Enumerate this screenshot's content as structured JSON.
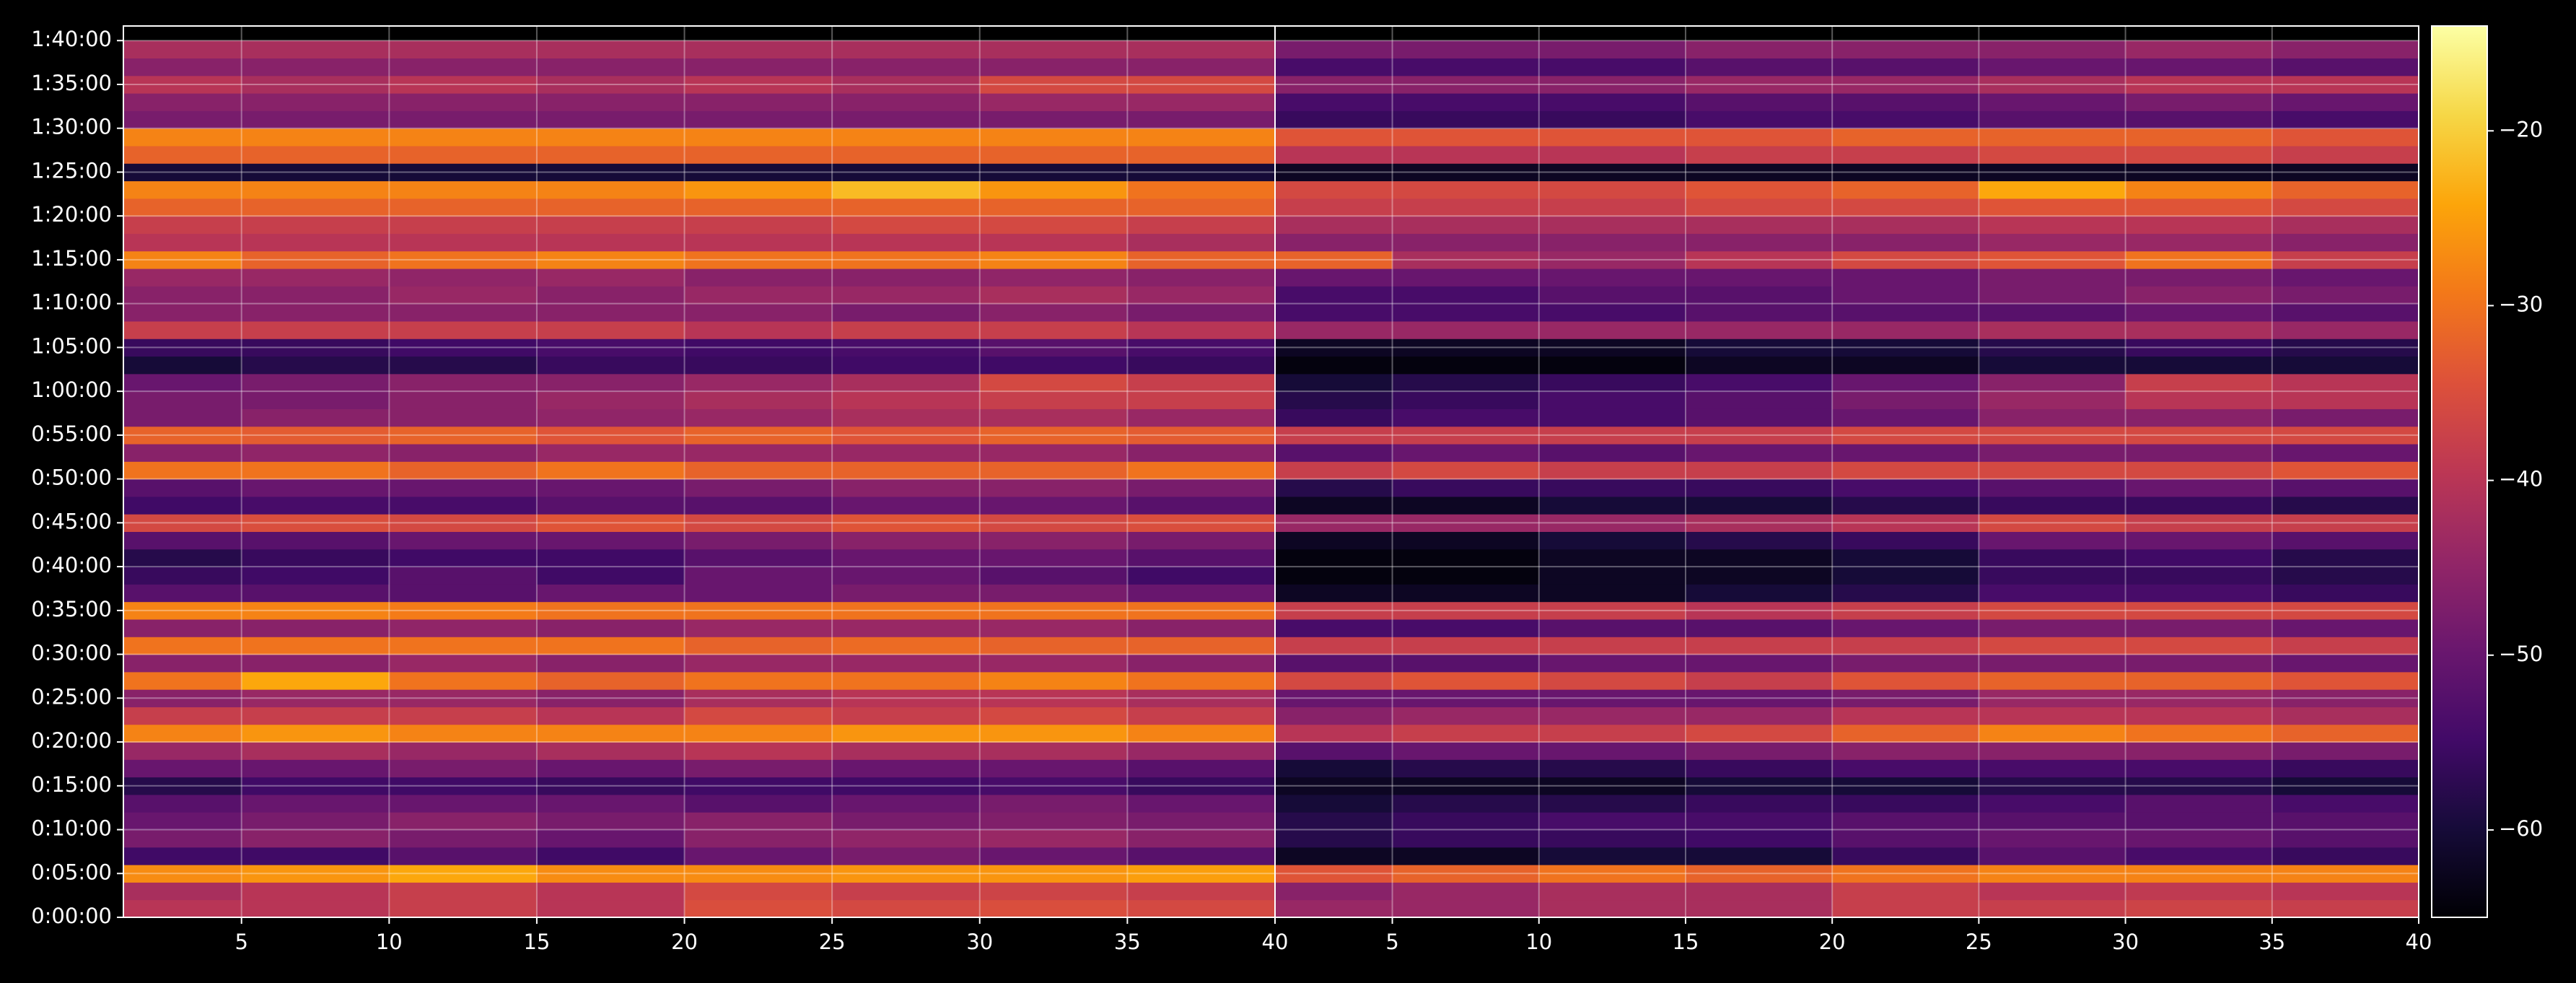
{
  "chart_data": {
    "type": "heatmap",
    "colormap": "inferno",
    "grid": true,
    "xlim": [
      1,
      40
    ],
    "ylim": [
      0,
      6100
    ],
    "clim": [
      -65,
      -14
    ],
    "xbins": [
      1,
      5,
      10,
      15,
      20,
      25,
      30,
      35,
      40
    ],
    "ybins": [
      0,
      120,
      240,
      360,
      480,
      600,
      720,
      840,
      960,
      1080,
      1200,
      1320,
      1440,
      1560,
      1680,
      1800,
      1920,
      2040,
      2160,
      2280,
      2400,
      2520,
      2640,
      2760,
      2880,
      3000,
      3120,
      3240,
      3360,
      3480,
      3600,
      3720,
      3840,
      3960,
      4080,
      4200,
      4320,
      4440,
      4560,
      4680,
      4800,
      4920,
      5040,
      5160,
      5280,
      5400,
      5520,
      5640,
      5760,
      5880,
      6000
    ],
    "yticks": [
      {
        "value": 0,
        "label": "0:00:00"
      },
      {
        "value": 300,
        "label": "0:05:00"
      },
      {
        "value": 600,
        "label": "0:10:00"
      },
      {
        "value": 900,
        "label": "0:15:00"
      },
      {
        "value": 1200,
        "label": "0:20:00"
      },
      {
        "value": 1500,
        "label": "0:25:00"
      },
      {
        "value": 1800,
        "label": "0:30:00"
      },
      {
        "value": 2100,
        "label": "0:35:00"
      },
      {
        "value": 2400,
        "label": "0:40:00"
      },
      {
        "value": 2700,
        "label": "0:45:00"
      },
      {
        "value": 3000,
        "label": "0:50:00"
      },
      {
        "value": 3300,
        "label": "0:55:00"
      },
      {
        "value": 3600,
        "label": "1:00:00"
      },
      {
        "value": 3900,
        "label": "1:05:00"
      },
      {
        "value": 4200,
        "label": "1:10:00"
      },
      {
        "value": 4500,
        "label": "1:15:00"
      },
      {
        "value": 4800,
        "label": "1:20:00"
      },
      {
        "value": 5100,
        "label": "1:25:00"
      },
      {
        "value": 5400,
        "label": "1:30:00"
      },
      {
        "value": 5700,
        "label": "1:35:00"
      },
      {
        "value": 6000,
        "label": "1:40:00"
      }
    ],
    "cticks": [
      {
        "value": -60,
        "label": "−60"
      },
      {
        "value": -50,
        "label": "−50"
      },
      {
        "value": -40,
        "label": "−40"
      },
      {
        "value": -30,
        "label": "−30"
      },
      {
        "value": -20,
        "label": "−20"
      }
    ],
    "panels": [
      {
        "xticks": [
          5,
          10,
          15,
          20,
          25,
          30,
          35,
          40
        ],
        "values": [
          [
            -40,
            -40,
            -38,
            -40,
            -35,
            -36,
            -35,
            -36
          ],
          [
            -42,
            -40,
            -38,
            -40,
            -36,
            -38,
            -37,
            -38
          ],
          [
            -27,
            -26,
            -24,
            -27,
            -27,
            -26,
            -26,
            -25
          ],
          [
            -55,
            -55,
            -52,
            -55,
            -50,
            -48,
            -50,
            -52
          ],
          [
            -48,
            -46,
            -48,
            -50,
            -46,
            -45,
            -44,
            -46
          ],
          [
            -50,
            -48,
            -46,
            -48,
            -46,
            -48,
            -47,
            -48
          ],
          [
            -52,
            -50,
            -50,
            -50,
            -52,
            -50,
            -48,
            -50
          ],
          [
            -58,
            -55,
            -55,
            -56,
            -55,
            -55,
            -54,
            -56
          ],
          [
            -50,
            -50,
            -48,
            -50,
            -48,
            -50,
            -50,
            -52
          ],
          [
            -44,
            -42,
            -44,
            -42,
            -40,
            -42,
            -42,
            -44
          ],
          [
            -28,
            -26,
            -28,
            -28,
            -28,
            -26,
            -26,
            -28
          ],
          [
            -38,
            -38,
            -38,
            -40,
            -36,
            -38,
            -36,
            -38
          ],
          [
            -46,
            -44,
            -44,
            -46,
            -42,
            -40,
            -40,
            -42
          ],
          [
            -30,
            -24,
            -30,
            -32,
            -30,
            -30,
            -28,
            -30
          ],
          [
            -46,
            -46,
            -44,
            -46,
            -44,
            -44,
            -44,
            -46
          ],
          [
            -30,
            -30,
            -30,
            -30,
            -32,
            -31,
            -32,
            -32
          ],
          [
            -46,
            -46,
            -45,
            -46,
            -44,
            -44,
            -44,
            -46
          ],
          [
            -28,
            -28,
            -29,
            -30,
            -30,
            -30,
            -30,
            -30
          ],
          [
            -52,
            -52,
            -52,
            -50,
            -50,
            -48,
            -48,
            -50
          ],
          [
            -56,
            -55,
            -52,
            -55,
            -50,
            -50,
            -52,
            -55
          ],
          [
            -58,
            -56,
            -55,
            -55,
            -52,
            -50,
            -50,
            -52
          ],
          [
            -52,
            -52,
            -50,
            -50,
            -48,
            -46,
            -46,
            -48
          ],
          [
            -36,
            -35,
            -36,
            -34,
            -36,
            -34,
            -36,
            -35
          ],
          [
            -55,
            -54,
            -54,
            -52,
            -52,
            -50,
            -50,
            -52
          ],
          [
            -52,
            -50,
            -50,
            -50,
            -48,
            -46,
            -46,
            -48
          ],
          [
            -30,
            -30,
            -32,
            -30,
            -32,
            -32,
            -32,
            -30
          ],
          [
            -46,
            -45,
            -46,
            -44,
            -44,
            -44,
            -44,
            -46
          ],
          [
            -32,
            -33,
            -32,
            -34,
            -32,
            -34,
            -32,
            -33
          ],
          [
            -48,
            -46,
            -46,
            -45,
            -44,
            -42,
            -42,
            -44
          ],
          [
            -48,
            -48,
            -46,
            -44,
            -42,
            -40,
            -38,
            -38
          ],
          [
            -50,
            -48,
            -46,
            -46,
            -44,
            -42,
            -36,
            -38
          ],
          [
            -60,
            -58,
            -58,
            -56,
            -56,
            -55,
            -55,
            -56
          ],
          [
            -56,
            -56,
            -55,
            -54,
            -55,
            -54,
            -52,
            -54
          ],
          [
            -38,
            -38,
            -38,
            -38,
            -40,
            -38,
            -38,
            -40
          ],
          [
            -46,
            -46,
            -46,
            -46,
            -46,
            -48,
            -46,
            -48
          ],
          [
            -46,
            -46,
            -44,
            -46,
            -44,
            -44,
            -42,
            -44
          ],
          [
            -44,
            -44,
            -45,
            -44,
            -46,
            -46,
            -45,
            -46
          ],
          [
            -28,
            -32,
            -30,
            -28,
            -30,
            -30,
            -28,
            -32
          ],
          [
            -40,
            -40,
            -40,
            -40,
            -40,
            -40,
            -40,
            -42
          ],
          [
            -38,
            -38,
            -38,
            -38,
            -38,
            -36,
            -36,
            -38
          ],
          [
            -32,
            -32,
            -32,
            -32,
            -32,
            -32,
            -32,
            -32
          ],
          [
            -28,
            -28,
            -28,
            -28,
            -26,
            -22,
            -26,
            -30
          ],
          [
            -60,
            -60,
            -60,
            -60,
            -60,
            -60,
            -60,
            -60
          ],
          [
            -32,
            -32,
            -32,
            -32,
            -32,
            -32,
            -32,
            -32
          ],
          [
            -28,
            -28,
            -28,
            -28,
            -28,
            -28,
            -28,
            -28
          ],
          [
            -48,
            -48,
            -48,
            -48,
            -48,
            -48,
            -48,
            -48
          ],
          [
            -46,
            -46,
            -46,
            -46,
            -46,
            -46,
            -44,
            -44
          ],
          [
            -40,
            -42,
            -40,
            -42,
            -40,
            -42,
            -36,
            -36
          ],
          [
            -46,
            -46,
            -46,
            -46,
            -46,
            -46,
            -46,
            -46
          ],
          [
            -42,
            -42,
            -42,
            -42,
            -42,
            -42,
            -42,
            -42
          ]
        ]
      },
      {
        "xticks": [
          5,
          10,
          15,
          20,
          25,
          30,
          35,
          40
        ],
        "values": [
          [
            -44,
            -44,
            -42,
            -42,
            -38,
            -38,
            -37,
            -38
          ],
          [
            -46,
            -44,
            -42,
            -42,
            -38,
            -40,
            -39,
            -40
          ],
          [
            -34,
            -32,
            -30,
            -32,
            -30,
            -28,
            -28,
            -28
          ],
          [
            -62,
            -62,
            -60,
            -60,
            -56,
            -52,
            -54,
            -56
          ],
          [
            -58,
            -56,
            -56,
            -55,
            -52,
            -50,
            -50,
            -52
          ],
          [
            -58,
            -56,
            -54,
            -54,
            -52,
            -52,
            -52,
            -52
          ],
          [
            -60,
            -58,
            -58,
            -56,
            -56,
            -54,
            -52,
            -54
          ],
          [
            -62,
            -62,
            -62,
            -60,
            -60,
            -58,
            -58,
            -60
          ],
          [
            -60,
            -58,
            -58,
            -56,
            -54,
            -54,
            -54,
            -56
          ],
          [
            -52,
            -50,
            -50,
            -48,
            -46,
            -46,
            -46,
            -48
          ],
          [
            -40,
            -38,
            -38,
            -36,
            -32,
            -28,
            -30,
            -32
          ],
          [
            -46,
            -44,
            -44,
            -44,
            -40,
            -40,
            -40,
            -42
          ],
          [
            -50,
            -50,
            -50,
            -50,
            -48,
            -44,
            -44,
            -46
          ],
          [
            -36,
            -34,
            -36,
            -38,
            -34,
            -32,
            -32,
            -34
          ],
          [
            -52,
            -52,
            -50,
            -50,
            -48,
            -48,
            -48,
            -50
          ],
          [
            -38,
            -38,
            -38,
            -38,
            -38,
            -36,
            -36,
            -38
          ],
          [
            -54,
            -54,
            -52,
            -52,
            -50,
            -48,
            -48,
            -50
          ],
          [
            -38,
            -38,
            -38,
            -40,
            -38,
            -36,
            -36,
            -36
          ],
          [
            -62,
            -62,
            -62,
            -60,
            -58,
            -54,
            -54,
            -56
          ],
          [
            -64,
            -64,
            -62,
            -62,
            -60,
            -56,
            -56,
            -58
          ],
          [
            -64,
            -64,
            -62,
            -62,
            -60,
            -56,
            -55,
            -58
          ],
          [
            -62,
            -62,
            -60,
            -58,
            -56,
            -50,
            -50,
            -52
          ],
          [
            -44,
            -44,
            -44,
            -42,
            -40,
            -36,
            -38,
            -38
          ],
          [
            -62,
            -62,
            -60,
            -60,
            -58,
            -56,
            -56,
            -58
          ],
          [
            -58,
            -56,
            -56,
            -56,
            -54,
            -52,
            -50,
            -52
          ],
          [
            -38,
            -36,
            -38,
            -38,
            -36,
            -36,
            -36,
            -34
          ],
          [
            -52,
            -50,
            -52,
            -50,
            -50,
            -48,
            -48,
            -50
          ],
          [
            -38,
            -38,
            -38,
            -38,
            -36,
            -36,
            -36,
            -36
          ],
          [
            -56,
            -54,
            -54,
            -52,
            -50,
            -46,
            -46,
            -48
          ],
          [
            -58,
            -56,
            -54,
            -52,
            -48,
            -44,
            -40,
            -40
          ],
          [
            -60,
            -58,
            -56,
            -54,
            -50,
            -46,
            -38,
            -40
          ],
          [
            -64,
            -64,
            -64,
            -62,
            -62,
            -60,
            -60,
            -60
          ],
          [
            -62,
            -62,
            -62,
            -60,
            -60,
            -58,
            -56,
            -58
          ],
          [
            -44,
            -44,
            -44,
            -44,
            -44,
            -42,
            -42,
            -44
          ],
          [
            -54,
            -54,
            -54,
            -52,
            -52,
            -52,
            -50,
            -52
          ],
          [
            -54,
            -54,
            -52,
            -52,
            -50,
            -48,
            -46,
            -48
          ],
          [
            -50,
            -50,
            -50,
            -50,
            -50,
            -48,
            -48,
            -50
          ],
          [
            -32,
            -42,
            -44,
            -40,
            -36,
            -34,
            -30,
            -38
          ],
          [
            -46,
            -46,
            -46,
            -46,
            -46,
            -44,
            -44,
            -46
          ],
          [
            -42,
            -42,
            -42,
            -42,
            -42,
            -40,
            -40,
            -42
          ],
          [
            -38,
            -38,
            -38,
            -36,
            -36,
            -34,
            -34,
            -36
          ],
          [
            -36,
            -36,
            -36,
            -34,
            -32,
            -24,
            -28,
            -32
          ],
          [
            -62,
            -62,
            -62,
            -62,
            -62,
            -62,
            -62,
            -62
          ],
          [
            -40,
            -40,
            -40,
            -38,
            -38,
            -36,
            -36,
            -38
          ],
          [
            -34,
            -34,
            -34,
            -34,
            -32,
            -32,
            -32,
            -34
          ],
          [
            -56,
            -56,
            -56,
            -54,
            -54,
            -52,
            -52,
            -54
          ],
          [
            -54,
            -54,
            -54,
            -52,
            -52,
            -50,
            -48,
            -50
          ],
          [
            -46,
            -46,
            -46,
            -44,
            -44,
            -42,
            -40,
            -40
          ],
          [
            -54,
            -54,
            -54,
            -52,
            -52,
            -50,
            -50,
            -52
          ],
          [
            -48,
            -48,
            -48,
            -46,
            -46,
            -46,
            -44,
            -46
          ]
        ]
      }
    ]
  }
}
